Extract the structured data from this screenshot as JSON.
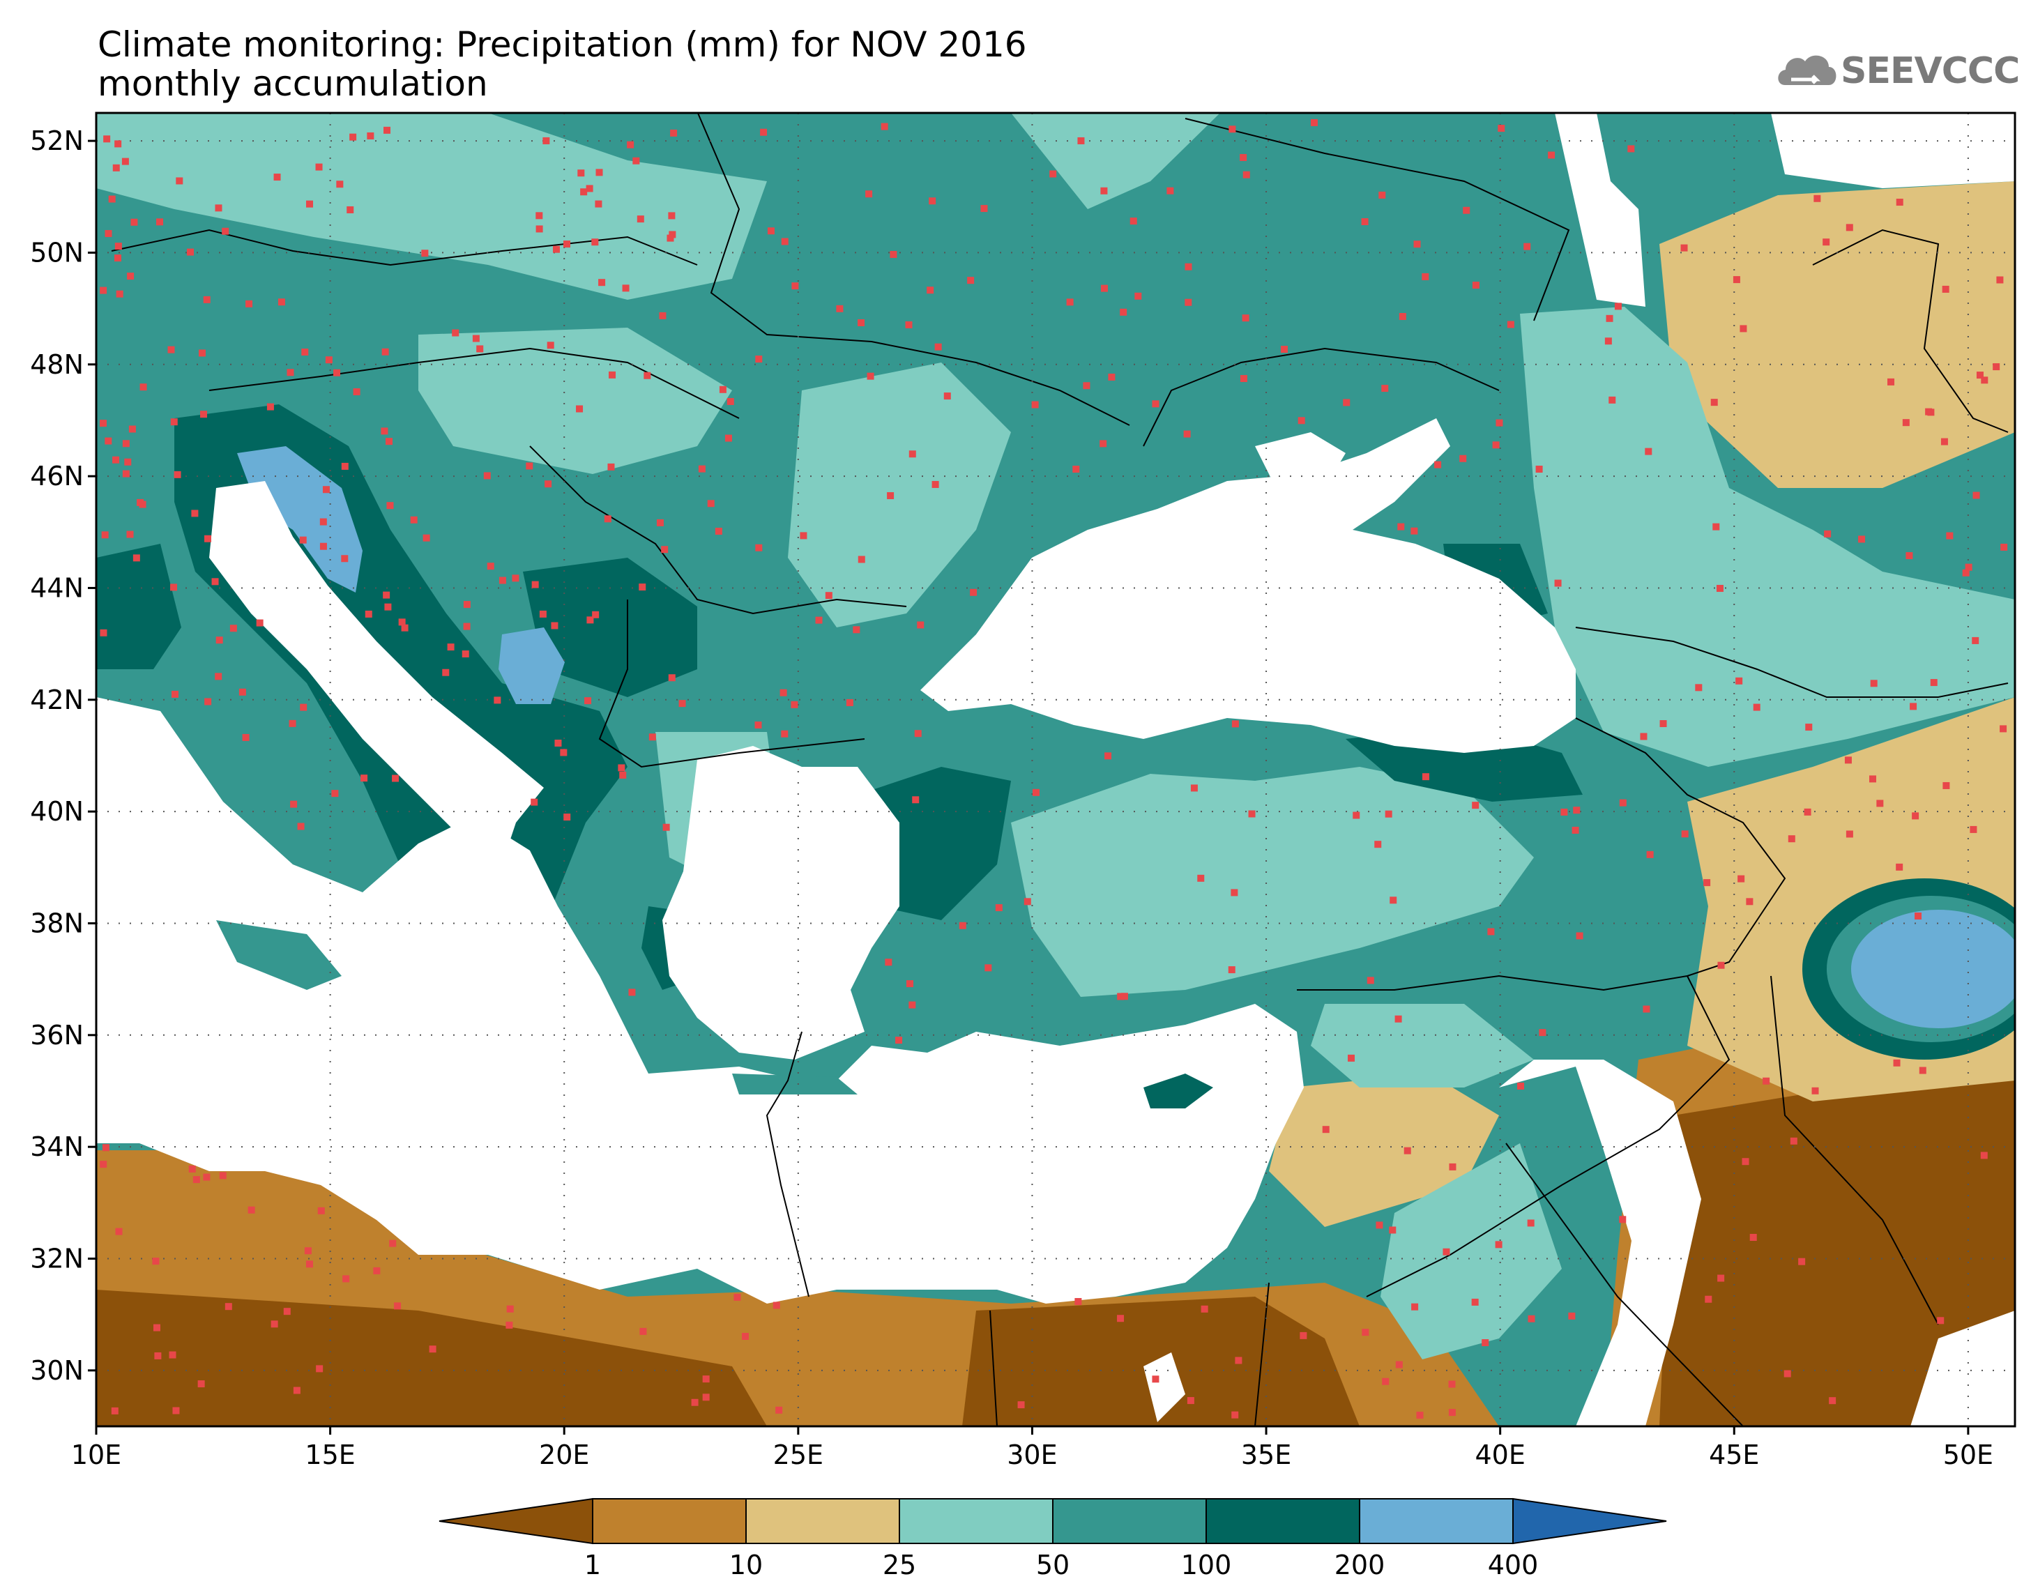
{
  "title_line1": "Climate monitoring: Precipitation (mm) for NOV 2016",
  "title_line2": "monthly accumulation",
  "logo_text": "SEEVCCC",
  "map_extent": {
    "lon_min": 10,
    "lon_max": 51,
    "lat_min": 29,
    "lat_max": 52.5
  },
  "lon_ticks": [
    {
      "lon": 10,
      "label": "10E"
    },
    {
      "lon": 15,
      "label": "15E"
    },
    {
      "lon": 20,
      "label": "20E"
    },
    {
      "lon": 25,
      "label": "25E"
    },
    {
      "lon": 30,
      "label": "30E"
    },
    {
      "lon": 35,
      "label": "35E"
    },
    {
      "lon": 40,
      "label": "40E"
    },
    {
      "lon": 45,
      "label": "45E"
    },
    {
      "lon": 50,
      "label": "50E"
    }
  ],
  "lat_ticks": [
    {
      "lat": 52,
      "label": "52N"
    },
    {
      "lat": 50,
      "label": "50N"
    },
    {
      "lat": 48,
      "label": "48N"
    },
    {
      "lat": 46,
      "label": "46N"
    },
    {
      "lat": 44,
      "label": "44N"
    },
    {
      "lat": 42,
      "label": "42N"
    },
    {
      "lat": 40,
      "label": "40N"
    },
    {
      "lat": 38,
      "label": "38N"
    },
    {
      "lat": 36,
      "label": "36N"
    },
    {
      "lat": 34,
      "label": "34N"
    },
    {
      "lat": 32,
      "label": "32N"
    },
    {
      "lat": 30,
      "label": "30N"
    }
  ],
  "colorbar": {
    "colors": [
      "#8c510a",
      "#bf812d",
      "#dfc27d",
      "#80cdc1",
      "#35978f",
      "#01665e",
      "#6aaed6",
      "#2166ac"
    ],
    "labels": [
      "1",
      "10",
      "25",
      "50",
      "100",
      "200",
      "400"
    ]
  },
  "station_color": "#e8474a"
}
